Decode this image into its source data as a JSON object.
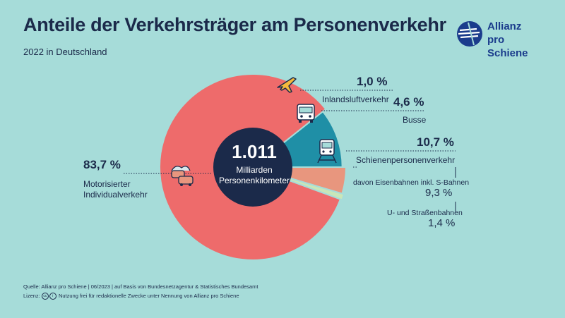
{
  "header": {
    "title": "Anteile der Verkehrsträger am Personenverkehr",
    "subtitle": "2022 in Deutschland"
  },
  "logo": {
    "line1": "Allianz",
    "line2": "pro Schiene",
    "icon": "allianz-pro-schiene-logo-icon"
  },
  "center": {
    "value": "1.011",
    "label_line1": "Milliarden",
    "label_line2": "Personenkilometer"
  },
  "labels": {
    "air": {
      "pct": "1,0 %",
      "name": "Inlandsluftverkehr",
      "icon": "airplane-icon"
    },
    "bus": {
      "pct": "4,6 %",
      "name": "Busse",
      "icon": "bus-icon"
    },
    "rail": {
      "pct": "10,7 %",
      "name": "Schienenpersonenverkehr",
      "icon": "train-icon"
    },
    "car": {
      "pct": "83,7 %",
      "name_line1": "Motorisierter",
      "name_line2": "Individualverkehr",
      "icon": "cars-icon"
    },
    "rail_sub1": {
      "name": "davon Eisenbahnen inkl. S-Bahnen",
      "pct": "9,3 %"
    },
    "rail_sub2": {
      "name": "U- und Straßenbahnen",
      "pct": "1,4 %"
    }
  },
  "footer": {
    "source": "Quelle: Allianz pro Schiene | 06/2023 | auf Basis von Bundesnetzagentur & Statistisches Bundesamt",
    "license_prefix": "Lizenz:",
    "license_text": "Nutzung frei für redaktionelle Zwecke unter Nennung von Allianz pro Schiene"
  },
  "chart_data": {
    "type": "pie",
    "title": "Anteile der Verkehrsträger am Personenverkehr",
    "subtitle": "2022 in Deutschland",
    "total": "1.011 Milliarden Personenkilometer",
    "slices": [
      {
        "name": "Schienenpersonenverkehr",
        "value": 10.7,
        "color": "#1f8fa6"
      },
      {
        "name": "Motorisierter Individualverkehr",
        "value": 83.7,
        "color": "#ee6b6b"
      },
      {
        "name": "Inlandsluftverkehr",
        "value": 1.0,
        "color": "#c9e6b8"
      },
      {
        "name": "Busse",
        "value": 4.6,
        "color": "#e8967e"
      }
    ],
    "breakdown": [
      {
        "parent": "Schienenpersonenverkehr",
        "name": "davon Eisenbahnen inkl. S-Bahnen",
        "value": 9.3
      },
      {
        "parent": "Schienenpersonenverkehr",
        "name": "U- und Straßenbahnen",
        "value": 1.4
      }
    ],
    "colors": {
      "background": "#a6dcd9",
      "center": "#1b2a4a",
      "text": "#1b2a4a"
    }
  }
}
